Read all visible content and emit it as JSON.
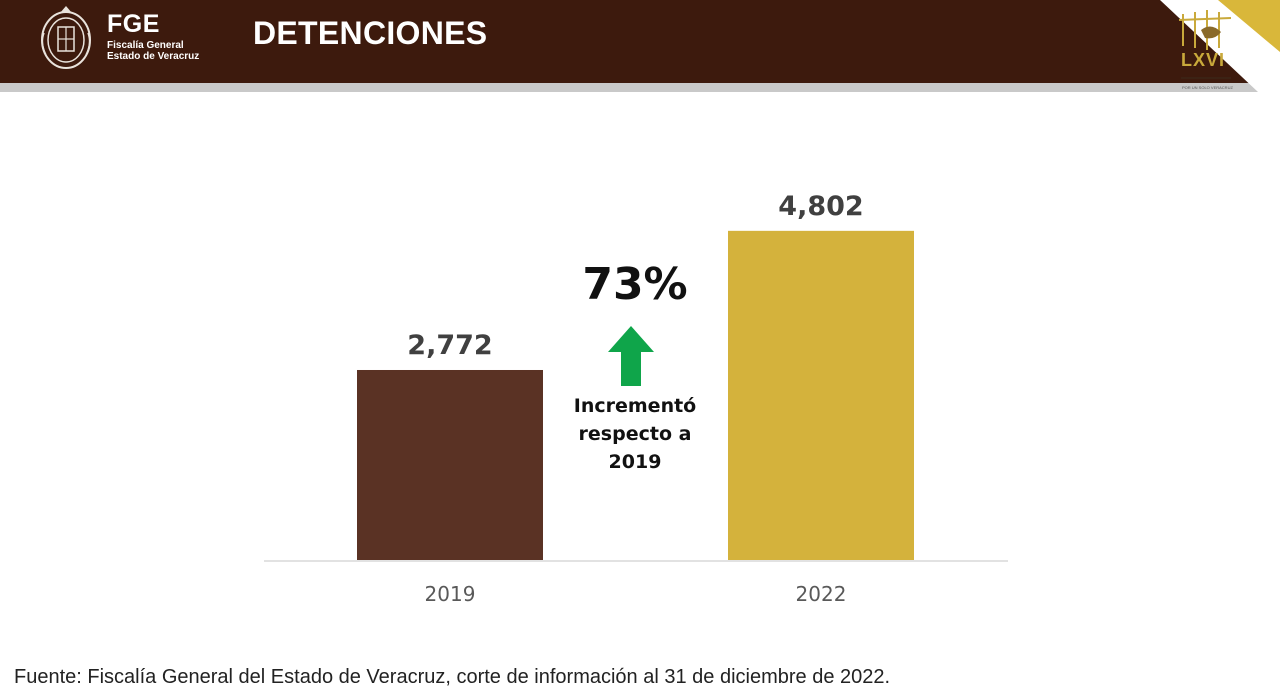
{
  "header": {
    "org_short": "FGE",
    "org_name_line1": "Fiscalía General",
    "org_name_line2": "Estado de Veracruz",
    "title": "DETENCIONES",
    "logo_text": "LXVI",
    "logo_motto": "POR UN SOLO VERACRUZ",
    "colors": {
      "header_bg": "#3d1a0d",
      "corner_gold": "#d9b73a"
    },
    "icons": [
      "state-seal-icon",
      "lxvi-legislature-logo-icon"
    ]
  },
  "chart_data": {
    "type": "bar",
    "title": "",
    "categories": [
      "2019",
      "2022"
    ],
    "values": [
      2772,
      4802
    ],
    "value_labels": [
      "2,772",
      "4,802"
    ],
    "bar_colors": [
      "#5a3224",
      "#d4b23c"
    ],
    "ylim": [
      0,
      5500
    ],
    "grid": false,
    "legend": "none",
    "annotation": {
      "percent": "73%",
      "text_lines": [
        "Incrementó",
        "respecto a",
        "2019"
      ],
      "arrow_color": "#0fa54a"
    }
  },
  "footer": {
    "source": "Fuente: Fiscalía General del Estado de Veracruz, corte de información al 31 de diciembre de 2022."
  }
}
